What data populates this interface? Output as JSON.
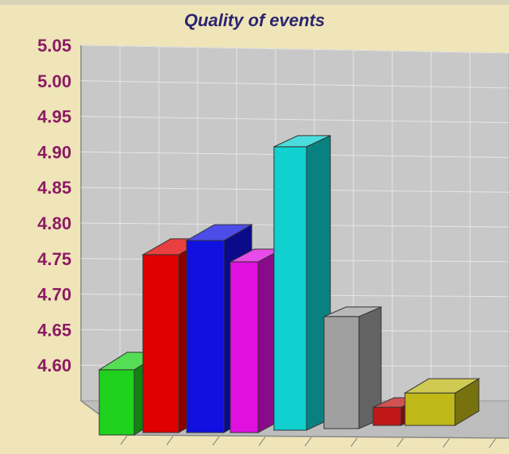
{
  "chart_data": {
    "type": "bar",
    "title": "Quality of events",
    "xlabel": "",
    "ylabel": "",
    "ylim": [
      4.55,
      5.05
    ],
    "y_ticks": [
      "4.60",
      "4.65",
      "4.70",
      "4.75",
      "4.80",
      "4.85",
      "4.90",
      "4.95",
      "5.00",
      "5.05"
    ],
    "grid": true,
    "values": [
      4.62,
      4.78,
      4.8,
      4.77,
      4.93,
      4.69,
      4.56,
      4.58
    ],
    "colors": [
      "#1ed21e",
      "#e00000",
      "#1010e0",
      "#e010e0",
      "#10d0d0",
      "#a0a0a0",
      "#c01818",
      "#c0b818"
    ],
    "background": "#efe5b8"
  }
}
